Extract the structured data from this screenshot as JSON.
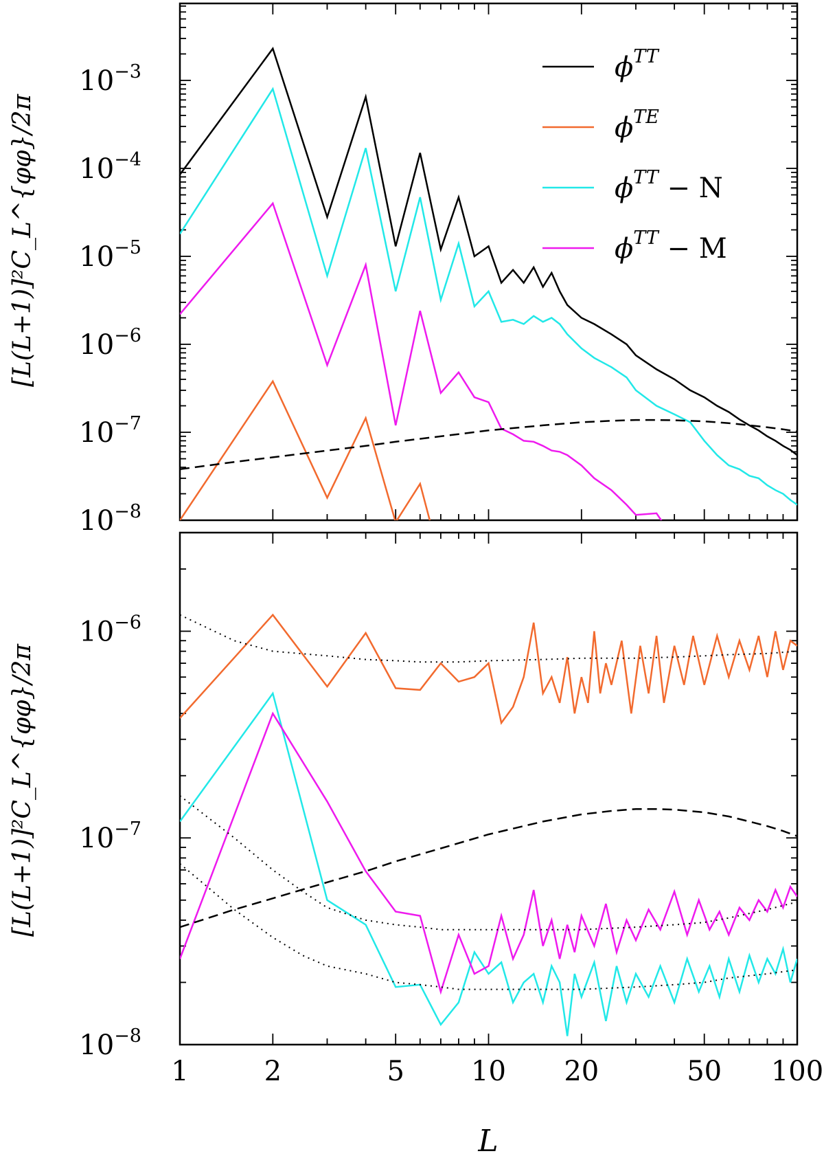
{
  "chart_data": [
    {
      "type": "line",
      "panel": "top",
      "xscale": "log",
      "yscale": "log",
      "xlim": [
        1,
        100
      ],
      "ylim": [
        1e-08,
        0.0075
      ],
      "ylabel": "[L(L+1)]²C_L^{φφ}/2π",
      "yticks": [
        {
          "value": 1e-08,
          "base": "10",
          "exp": "−8"
        },
        {
          "value": 1e-07,
          "base": "10",
          "exp": "−7"
        },
        {
          "value": 1e-06,
          "base": "10",
          "exp": "−6"
        },
        {
          "value": 1e-05,
          "base": "10",
          "exp": "−5"
        },
        {
          "value": 0.0001,
          "base": "10",
          "exp": "−4"
        },
        {
          "value": 0.001,
          "base": "10",
          "exp": "−3"
        }
      ],
      "legend": {
        "placement": "top-right",
        "entries": [
          {
            "label_main": "ϕ",
            "label_sup": "TT",
            "label_suffix": "",
            "color": "#000000"
          },
          {
            "label_main": "ϕ",
            "label_sup": "TE",
            "label_suffix": "",
            "color": "#f26a2e"
          },
          {
            "label_main": "ϕ",
            "label_sup": "TT",
            "label_suffix": " − N",
            "color": "#22e8e8"
          },
          {
            "label_main": "ϕ",
            "label_sup": "TT",
            "label_suffix": " − M",
            "color": "#ee1aee"
          }
        ]
      },
      "series": [
        {
          "name": "phiTT",
          "color": "#000000",
          "style": "solid",
          "x": [
            1,
            2,
            3,
            4,
            5,
            6,
            7,
            8,
            9,
            10,
            11,
            12,
            13,
            14,
            15,
            16,
            17,
            18,
            20,
            22,
            25,
            28,
            30,
            35,
            40,
            45,
            50,
            55,
            60,
            65,
            70,
            75,
            80,
            85,
            90,
            95,
            100
          ],
          "y": [
            8.5e-05,
            0.0023,
            2.8e-05,
            0.00065,
            1.3e-05,
            0.00015,
            1.2e-05,
            4.7e-05,
            1e-05,
            1.3e-05,
            5e-06,
            7e-06,
            5e-06,
            7.5e-06,
            4.5e-06,
            6.5e-06,
            4e-06,
            2.8e-06,
            2e-06,
            1.7e-06,
            1.3e-06,
            1e-06,
            7.5e-07,
            5.2e-07,
            4e-07,
            3e-07,
            2.5e-07,
            2e-07,
            1.7e-07,
            1.4e-07,
            1.2e-07,
            1.05e-07,
            9e-08,
            8e-08,
            7e-08,
            6.3e-08,
            5.5e-08
          ]
        },
        {
          "name": "phiTE",
          "color": "#f26a2e",
          "style": "solid",
          "x": [
            1,
            2,
            3,
            4,
            5,
            6,
            6.5
          ],
          "y": [
            1e-08,
            3.8e-07,
            1.8e-08,
            1.45e-07,
            9.5e-09,
            2.6e-08,
            9e-09
          ]
        },
        {
          "name": "phiTT-N",
          "color": "#22e8e8",
          "style": "solid",
          "x": [
            1,
            2,
            3,
            4,
            5,
            6,
            7,
            8,
            9,
            10,
            11,
            12,
            13,
            14,
            15,
            16,
            17,
            18,
            20,
            22,
            25,
            28,
            30,
            35,
            40,
            45,
            50,
            55,
            60,
            65,
            70,
            75,
            80,
            85,
            90,
            95,
            100
          ],
          "y": [
            1.8e-05,
            0.0008,
            6e-06,
            0.00017,
            4e-06,
            4.7e-05,
            3.2e-06,
            1.4e-05,
            2.7e-06,
            4e-06,
            1.8e-06,
            1.9e-06,
            1.7e-06,
            2.1e-06,
            1.8e-06,
            2e-06,
            1.7e-06,
            1.3e-06,
            9e-07,
            7e-07,
            5.5e-07,
            4.2e-07,
            3e-07,
            2e-07,
            1.6e-07,
            1.3e-07,
            8e-08,
            5.5e-08,
            4.2e-08,
            3.8e-08,
            3.2e-08,
            3e-08,
            2.5e-08,
            2.2e-08,
            2e-08,
            1.7e-08,
            1.5e-08
          ]
        },
        {
          "name": "phiTT-M",
          "color": "#ee1aee",
          "style": "solid",
          "x": [
            1,
            2,
            3,
            4,
            5,
            6,
            7,
            8,
            9,
            10,
            11,
            12,
            13,
            14,
            15,
            16,
            17,
            18,
            20,
            22,
            25,
            28,
            30,
            35,
            37
          ],
          "y": [
            2.2e-06,
            4e-05,
            5.8e-07,
            8e-06,
            1.2e-07,
            2.4e-06,
            2.8e-07,
            4.8e-07,
            2.5e-07,
            2.2e-07,
            1.1e-07,
            9.5e-08,
            8e-08,
            7.8e-08,
            7e-08,
            6.2e-08,
            6e-08,
            5.5e-08,
            4.2e-08,
            3e-08,
            2.2e-08,
            1.5e-08,
            1.15e-08,
            1.2e-08,
            9e-09
          ]
        },
        {
          "name": "theory",
          "color": "#000000",
          "style": "dashed",
          "x": [
            1,
            1.5,
            2,
            3,
            4,
            5,
            7,
            10,
            15,
            20,
            25,
            30,
            35,
            40,
            50,
            60,
            70,
            80,
            90,
            100
          ],
          "y": [
            3.8e-08,
            4.6e-08,
            5.2e-08,
            6.2e-08,
            7e-08,
            7.8e-08,
            9e-08,
            1.05e-07,
            1.2e-07,
            1.3e-07,
            1.35e-07,
            1.38e-07,
            1.38e-07,
            1.37e-07,
            1.33e-07,
            1.27e-07,
            1.2e-07,
            1.14e-07,
            1.08e-07,
            1.02e-07
          ]
        }
      ]
    },
    {
      "type": "line",
      "panel": "bottom",
      "xscale": "log",
      "yscale": "log",
      "xlim": [
        1,
        100
      ],
      "ylim": [
        1e-08,
        3e-06
      ],
      "xlabel": "L",
      "ylabel": "[L(L+1)]²C_L^{φφ}/2π",
      "xticks": [
        "1",
        "2",
        "5",
        "10",
        "20",
        "50",
        "100"
      ],
      "yticks": [
        {
          "value": 1e-08,
          "base": "10",
          "exp": "−8"
        },
        {
          "value": 1e-07,
          "base": "10",
          "exp": "−7"
        },
        {
          "value": 1e-06,
          "base": "10",
          "exp": "−6"
        }
      ],
      "series": [
        {
          "name": "phiTE",
          "color": "#f26a2e",
          "style": "solid",
          "x": [
            1,
            2,
            3,
            4,
            5,
            6,
            7,
            8,
            9,
            10,
            11,
            12,
            13,
            14,
            15,
            16,
            17,
            18,
            19,
            20,
            21,
            22,
            23,
            24,
            25,
            27,
            29,
            31,
            33,
            35,
            37,
            40,
            43,
            46,
            50,
            55,
            60,
            65,
            70,
            75,
            80,
            85,
            90,
            95,
            100
          ],
          "y": [
            3.8e-07,
            1.2e-06,
            5.4e-07,
            9.8e-07,
            5.3e-07,
            5.2e-07,
            7e-07,
            5.7e-07,
            6e-07,
            7e-07,
            3.6e-07,
            4.3e-07,
            6e-07,
            1.1e-06,
            5e-07,
            6e-07,
            4.5e-07,
            7.5e-07,
            4e-07,
            6e-07,
            4.5e-07,
            1e-06,
            5e-07,
            7e-07,
            5.5e-07,
            9e-07,
            4e-07,
            8.5e-07,
            5e-07,
            9.5e-07,
            4.5e-07,
            8.5e-07,
            5.5e-07,
            9.5e-07,
            5.5e-07,
            9.5e-07,
            6e-07,
            9e-07,
            6.5e-07,
            9.5e-07,
            6e-07,
            1e-06,
            6.5e-07,
            9e-07,
            8.5e-07
          ]
        },
        {
          "name": "phiTT-N",
          "color": "#22e8e8",
          "style": "solid",
          "x": [
            1,
            2,
            3,
            4,
            5,
            6,
            7,
            8,
            9,
            10,
            11,
            12,
            13,
            14,
            15,
            16,
            17,
            18,
            19,
            20,
            22,
            24,
            26,
            28,
            30,
            33,
            36,
            40,
            44,
            48,
            52,
            56,
            60,
            65,
            70,
            75,
            80,
            85,
            90,
            95,
            100
          ],
          "y": [
            1.2e-07,
            5e-07,
            5e-08,
            3.8e-08,
            1.9e-08,
            1.95e-08,
            1.25e-08,
            1.6e-08,
            2.8e-08,
            2.2e-08,
            2.5e-08,
            1.6e-08,
            2e-08,
            2.2e-08,
            1.6e-08,
            2.4e-08,
            2e-08,
            1.1e-08,
            2.2e-08,
            1.7e-08,
            2.5e-08,
            1.3e-08,
            2.4e-08,
            1.6e-08,
            2.2e-08,
            1.7e-08,
            2.4e-08,
            1.6e-08,
            2.6e-08,
            1.8e-08,
            2.4e-08,
            1.7e-08,
            2.6e-08,
            1.8e-08,
            2.7e-08,
            2e-08,
            2.6e-08,
            2.2e-08,
            2.9e-08,
            2e-08,
            2.6e-08
          ]
        },
        {
          "name": "phiTT-M",
          "color": "#ee1aee",
          "style": "solid",
          "x": [
            1,
            2,
            3,
            4,
            5,
            6,
            7,
            8,
            9,
            10,
            11,
            12,
            13,
            14,
            15,
            16,
            17,
            18,
            19,
            20,
            22,
            24,
            26,
            28,
            30,
            33,
            36,
            40,
            44,
            48,
            52,
            56,
            60,
            65,
            70,
            75,
            80,
            85,
            90,
            95,
            100
          ],
          "y": [
            2.6e-08,
            4e-07,
            1.5e-07,
            6.9e-08,
            4.4e-08,
            4.2e-08,
            1.8e-08,
            3.4e-08,
            2.2e-08,
            2.4e-08,
            4.2e-08,
            2.6e-08,
            3.4e-08,
            5.6e-08,
            3e-08,
            4e-08,
            2.6e-08,
            3.8e-08,
            2.8e-08,
            4.2e-08,
            3e-08,
            4.8e-08,
            2.8e-08,
            4e-08,
            3.2e-08,
            4.5e-08,
            3.6e-08,
            5.5e-08,
            3.4e-08,
            5e-08,
            3.6e-08,
            4.4e-08,
            3.4e-08,
            4.6e-08,
            4e-08,
            5e-08,
            4.4e-08,
            5.6e-08,
            4.6e-08,
            5.8e-08,
            5.2e-08
          ]
        },
        {
          "name": "theory",
          "color": "#000000",
          "style": "dashed",
          "x": [
            1,
            1.5,
            2,
            3,
            4,
            5,
            7,
            10,
            15,
            20,
            25,
            30,
            35,
            40,
            50,
            60,
            70,
            80,
            90,
            100
          ],
          "y": [
            3.7e-08,
            4.5e-08,
            5.1e-08,
            6.1e-08,
            6.9e-08,
            7.7e-08,
            8.9e-08,
            1.04e-07,
            1.2e-07,
            1.3e-07,
            1.35e-07,
            1.38e-07,
            1.38e-07,
            1.37e-07,
            1.33e-07,
            1.27e-07,
            1.2e-07,
            1.14e-07,
            1.08e-07,
            1.02e-07
          ]
        },
        {
          "name": "noise-TE",
          "color": "#000000",
          "style": "dotted",
          "x": [
            1,
            1.5,
            2,
            3,
            4,
            5,
            6,
            7,
            8,
            10,
            15,
            20,
            30,
            40,
            50,
            60,
            80,
            100
          ],
          "y": [
            1.2e-06,
            9e-07,
            8e-07,
            7.6e-07,
            7.3e-07,
            7.2e-07,
            7.1e-07,
            7.1e-07,
            7.1e-07,
            7.2e-07,
            7.3e-07,
            7.4e-07,
            7.4e-07,
            7.5e-07,
            7.6e-07,
            7.7e-07,
            7.8e-07,
            8e-07
          ]
        },
        {
          "name": "noise-M",
          "color": "#000000",
          "style": "dotted",
          "x": [
            1,
            1.5,
            2,
            2.5,
            3,
            4,
            5,
            6,
            7,
            8,
            10,
            15,
            20,
            30,
            40,
            50,
            60,
            80,
            100
          ],
          "y": [
            1.6e-07,
            1e-07,
            7e-08,
            5.5e-08,
            4.6e-08,
            4e-08,
            3.8e-08,
            3.7e-08,
            3.6e-08,
            3.6e-08,
            3.6e-08,
            3.6e-08,
            3.6e-08,
            3.7e-08,
            3.8e-08,
            3.9e-08,
            4.1e-08,
            4.5e-08,
            4.9e-08
          ]
        },
        {
          "name": "noise-N",
          "color": "#000000",
          "style": "dotted",
          "x": [
            1,
            1.5,
            2,
            2.5,
            3,
            4,
            5,
            6,
            7,
            8,
            10,
            15,
            20,
            30,
            40,
            50,
            60,
            80,
            100
          ],
          "y": [
            7.5e-08,
            4.5e-08,
            3.3e-08,
            2.7e-08,
            2.4e-08,
            2.2e-08,
            2e-08,
            1.95e-08,
            1.9e-08,
            1.85e-08,
            1.85e-08,
            1.85e-08,
            1.85e-08,
            1.9e-08,
            1.95e-08,
            2e-08,
            2.1e-08,
            2.2e-08,
            2.3e-08
          ]
        }
      ]
    }
  ]
}
